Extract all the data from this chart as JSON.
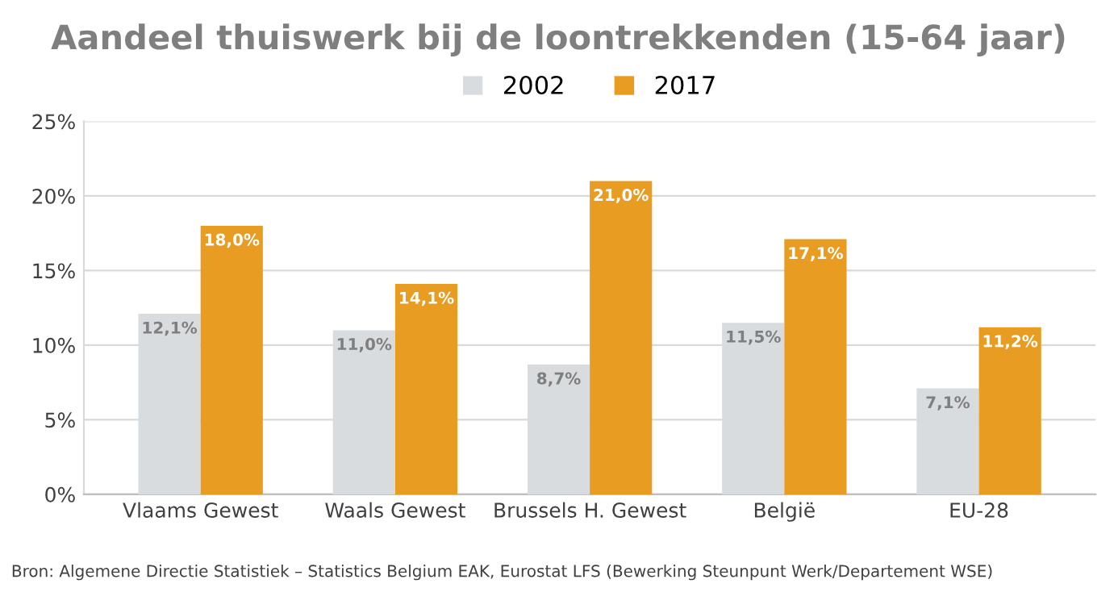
{
  "chart_data": {
    "type": "bar",
    "title": "Aandeel thuiswerk bij de loontrekkenden (15-64 jaar)",
    "categories": [
      "Vlaams Gewest",
      "Waals Gewest",
      "Brussels H. Gewest",
      "België",
      "EU-28"
    ],
    "series": [
      {
        "name": "2002",
        "color": "#d9dcdf",
        "values": [
          12.1,
          11.0,
          8.7,
          11.5,
          7.1
        ],
        "value_labels": [
          "12,1%",
          "11,0%",
          "8,7%",
          "11,5%",
          "7,1%"
        ]
      },
      {
        "name": "2017",
        "color": "#e89c22",
        "values": [
          18.0,
          14.1,
          21.0,
          17.1,
          11.2
        ],
        "value_labels": [
          "18,0%",
          "14,1%",
          "21,0%",
          "17,1%",
          "11,2%"
        ]
      }
    ],
    "ylim": [
      0,
      25
    ],
    "yticks": [
      {
        "value": 0,
        "label": "0%"
      },
      {
        "value": 5,
        "label": "5%"
      },
      {
        "value": 10,
        "label": "10%"
      },
      {
        "value": 15,
        "label": "15%"
      },
      {
        "value": 20,
        "label": "20%"
      },
      {
        "value": 25,
        "label": "25%"
      }
    ],
    "grid": "y",
    "legend": "top",
    "annotations": [
      "Bron: Algemene Directie Statistiek – Statistics Belgium EAK, Eurostat LFS (Bewerking Steunpunt Werk/Departement WSE)"
    ]
  }
}
